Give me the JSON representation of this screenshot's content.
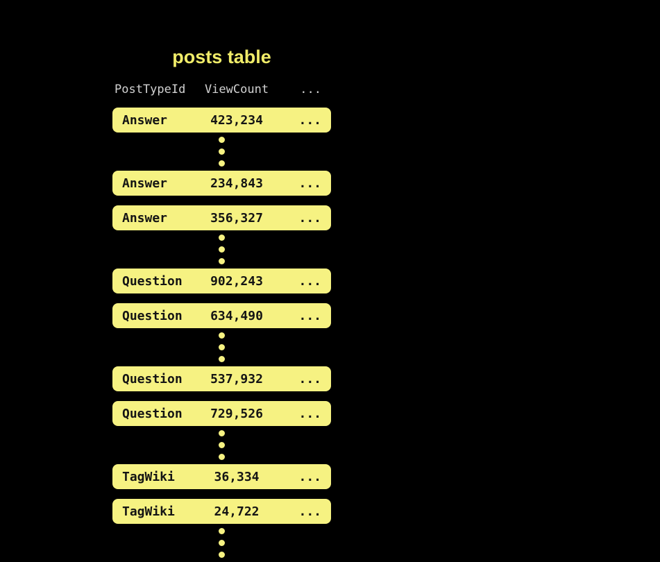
{
  "diagram": {
    "title": "posts table",
    "header": {
      "columns": [
        "PostTypeId",
        "ViewCount",
        "..."
      ]
    },
    "rows": [
      {
        "post_type": "Answer",
        "view_count": "423,234",
        "more": "..."
      },
      {
        "post_type": "Answer",
        "view_count": "234,843",
        "more": "..."
      },
      {
        "post_type": "Answer",
        "view_count": "356,327",
        "more": "..."
      },
      {
        "post_type": "Question",
        "view_count": "902,243",
        "more": "..."
      },
      {
        "post_type": "Question",
        "view_count": "634,490",
        "more": "..."
      },
      {
        "post_type": "Question",
        "view_count": "537,932",
        "more": "..."
      },
      {
        "post_type": "Question",
        "view_count": "729,526",
        "more": "..."
      },
      {
        "post_type": "TagWiki",
        "view_count": "36,334",
        "more": "..."
      },
      {
        "post_type": "TagWiki",
        "view_count": "24,722",
        "more": "..."
      }
    ],
    "colors": {
      "background": "#000000",
      "row_fill": "#f6f282",
      "row_text": "#141414",
      "title_text": "#f0ec69",
      "header_text": "#d2d2d2",
      "dot_fill": "#f6f282"
    }
  }
}
